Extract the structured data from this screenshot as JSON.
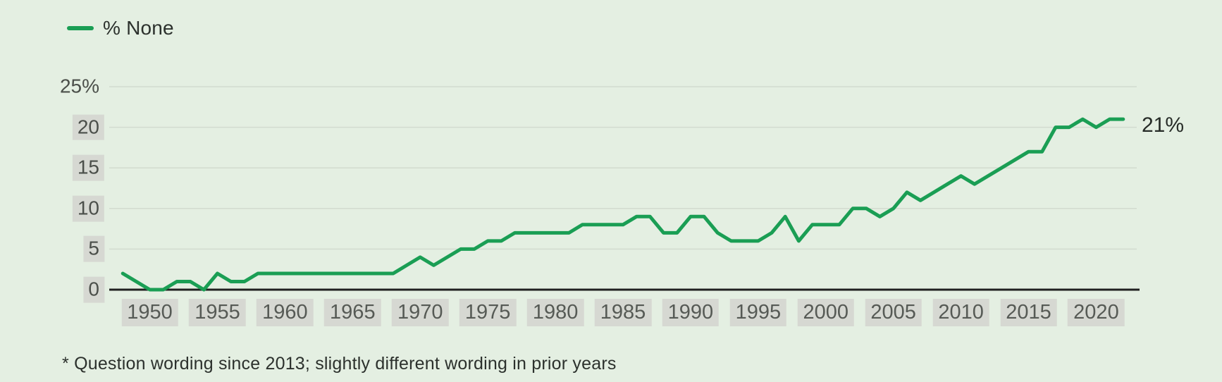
{
  "legend": {
    "label": "% None"
  },
  "annotation": {
    "end_label": "21%"
  },
  "footnote": "* Question wording since 2013; slightly different wording in prior years",
  "colors": {
    "background": "#e4efe2",
    "line": "#1a9e54",
    "gridline": "#d2dbcf",
    "axis": "#202020",
    "tick_text": "#4b4f4a",
    "tick_highlight": "#d6d8d2",
    "text": "#2c312d"
  },
  "chart_data": {
    "type": "line",
    "title": "",
    "legend_position": "top-left",
    "grid": true,
    "xlabel": "",
    "ylabel": "",
    "xlim": [
      1947,
      2023
    ],
    "ylim": [
      0,
      25
    ],
    "x_ticks": [
      1950,
      1955,
      1960,
      1965,
      1970,
      1975,
      1980,
      1985,
      1990,
      1995,
      2000,
      2005,
      2010,
      2015,
      2020
    ],
    "y_ticks": [
      {
        "value": 0,
        "label": "0",
        "highlighted": true
      },
      {
        "value": 5,
        "label": "5",
        "highlighted": true
      },
      {
        "value": 10,
        "label": "10",
        "highlighted": true
      },
      {
        "value": 15,
        "label": "15",
        "highlighted": true
      },
      {
        "value": 20,
        "label": "20",
        "highlighted": true
      },
      {
        "value": 25,
        "label": "25%",
        "highlighted": false
      }
    ],
    "series": [
      {
        "name": "% None",
        "color": "#1a9e54",
        "points": [
          [
            1948,
            2
          ],
          [
            1949,
            1
          ],
          [
            1950,
            0
          ],
          [
            1951,
            0
          ],
          [
            1952,
            1
          ],
          [
            1953,
            1
          ],
          [
            1954,
            0
          ],
          [
            1955,
            2
          ],
          [
            1956,
            1
          ],
          [
            1957,
            1
          ],
          [
            1958,
            2
          ],
          [
            1959,
            2
          ],
          [
            1960,
            2
          ],
          [
            1961,
            2
          ],
          [
            1962,
            2
          ],
          [
            1963,
            2
          ],
          [
            1964,
            2
          ],
          [
            1965,
            2
          ],
          [
            1966,
            2
          ],
          [
            1967,
            2
          ],
          [
            1968,
            2
          ],
          [
            1969,
            3
          ],
          [
            1970,
            4
          ],
          [
            1971,
            3
          ],
          [
            1972,
            4
          ],
          [
            1973,
            5
          ],
          [
            1974,
            5
          ],
          [
            1975,
            6
          ],
          [
            1976,
            6
          ],
          [
            1977,
            7
          ],
          [
            1978,
            7
          ],
          [
            1979,
            7
          ],
          [
            1980,
            7
          ],
          [
            1981,
            7
          ],
          [
            1982,
            8
          ],
          [
            1983,
            8
          ],
          [
            1984,
            8
          ],
          [
            1985,
            8
          ],
          [
            1986,
            9
          ],
          [
            1987,
            9
          ],
          [
            1988,
            7
          ],
          [
            1989,
            7
          ],
          [
            1990,
            9
          ],
          [
            1991,
            9
          ],
          [
            1992,
            7
          ],
          [
            1993,
            6
          ],
          [
            1994,
            6
          ],
          [
            1995,
            6
          ],
          [
            1996,
            7
          ],
          [
            1997,
            9
          ],
          [
            1998,
            6
          ],
          [
            1999,
            8
          ],
          [
            2000,
            8
          ],
          [
            2001,
            8
          ],
          [
            2002,
            10
          ],
          [
            2003,
            10
          ],
          [
            2004,
            9
          ],
          [
            2005,
            10
          ],
          [
            2006,
            12
          ],
          [
            2007,
            11
          ],
          [
            2008,
            12
          ],
          [
            2009,
            13
          ],
          [
            2010,
            14
          ],
          [
            2011,
            13
          ],
          [
            2012,
            14
          ],
          [
            2013,
            15
          ],
          [
            2014,
            16
          ],
          [
            2015,
            17
          ],
          [
            2016,
            17
          ],
          [
            2017,
            20
          ],
          [
            2018,
            20
          ],
          [
            2019,
            21
          ],
          [
            2020,
            20
          ],
          [
            2021,
            21
          ],
          [
            2022,
            21
          ]
        ]
      }
    ],
    "end_annotation": {
      "x": 2022,
      "y": 21,
      "text": "21%"
    }
  }
}
